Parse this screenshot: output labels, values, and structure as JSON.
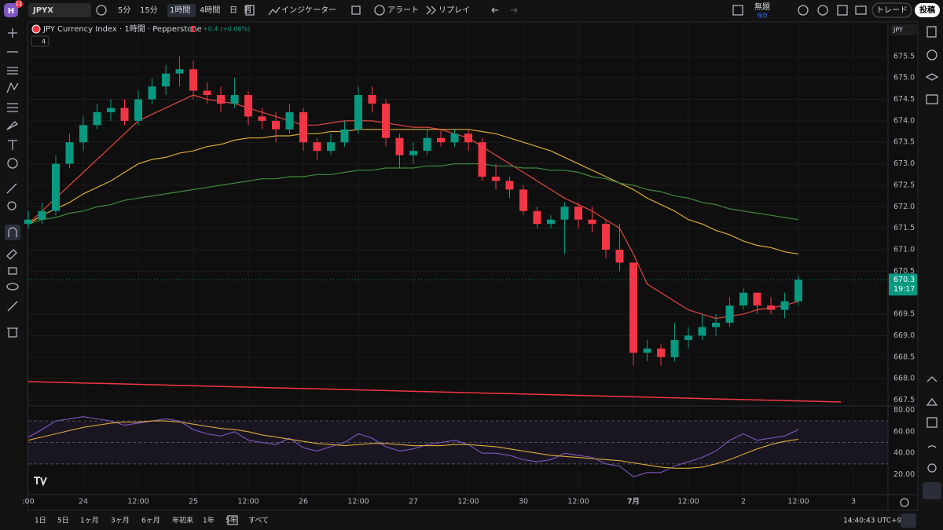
{
  "toolbar": {
    "avatar": "H",
    "badge": "11",
    "symbol": "JPYX",
    "intervals": [
      "5分",
      "15分",
      "1時間",
      "4時間",
      "日",
      "週"
    ],
    "indicators": "インジケーター",
    "alert": "アラート",
    "replay": "リプレイ",
    "layout_name": "無題",
    "layout_status": "保存",
    "trade": "トレード",
    "publish": "投稿"
  },
  "chart": {
    "type": "candlestick",
    "title": "JPY Currency Index · 1時間 · Pepperstone",
    "change": "+0.4 (+0.06%)",
    "indicator_count": "4",
    "currency": "JPY",
    "up_color": "#089981",
    "down_color": "#f23645",
    "categories": [
      ":00",
      null,
      null,
      null,
      "24",
      null,
      null,
      null,
      "12:00",
      null,
      null,
      null,
      "25",
      null,
      null,
      null,
      "12:00",
      null,
      null,
      null,
      "26",
      null,
      null,
      null,
      "12:00",
      null,
      null,
      null,
      "27",
      null,
      null,
      null,
      "12:00",
      null,
      null,
      null,
      "30",
      null,
      null,
      null,
      "12:00",
      null,
      null,
      null,
      "7月",
      null,
      null,
      null,
      "12:00",
      null,
      null,
      null,
      "2",
      null,
      null,
      null,
      "12:00",
      null,
      null,
      null,
      "3"
    ],
    "candles": [
      {
        "o": 671.6,
        "h": 671.9,
        "l": 671.5,
        "c": 671.7
      },
      {
        "o": 671.7,
        "h": 672.1,
        "l": 671.6,
        "c": 671.9
      },
      {
        "o": 671.9,
        "h": 673.2,
        "l": 671.8,
        "c": 673.0
      },
      {
        "o": 673.0,
        "h": 673.7,
        "l": 672.9,
        "c": 673.5
      },
      {
        "o": 673.5,
        "h": 674.1,
        "l": 673.3,
        "c": 673.9
      },
      {
        "o": 673.9,
        "h": 674.4,
        "l": 673.8,
        "c": 674.2
      },
      {
        "o": 674.2,
        "h": 674.5,
        "l": 674.0,
        "c": 674.3
      },
      {
        "o": 674.3,
        "h": 674.5,
        "l": 673.9,
        "c": 674.0
      },
      {
        "o": 674.0,
        "h": 674.7,
        "l": 673.9,
        "c": 674.5
      },
      {
        "o": 674.5,
        "h": 675.0,
        "l": 674.4,
        "c": 674.8
      },
      {
        "o": 674.8,
        "h": 675.3,
        "l": 674.6,
        "c": 675.1
      },
      {
        "o": 675.1,
        "h": 675.5,
        "l": 674.8,
        "c": 675.2
      },
      {
        "o": 675.2,
        "h": 675.4,
        "l": 674.5,
        "c": 674.7
      },
      {
        "o": 674.7,
        "h": 674.9,
        "l": 674.4,
        "c": 674.6
      },
      {
        "o": 674.6,
        "h": 674.8,
        "l": 674.2,
        "c": 674.4
      },
      {
        "o": 674.4,
        "h": 675.0,
        "l": 674.3,
        "c": 674.6
      },
      {
        "o": 674.6,
        "h": 674.7,
        "l": 673.9,
        "c": 674.1
      },
      {
        "o": 674.1,
        "h": 674.3,
        "l": 673.8,
        "c": 674.0
      },
      {
        "o": 674.0,
        "h": 674.2,
        "l": 673.5,
        "c": 673.8
      },
      {
        "o": 673.8,
        "h": 674.4,
        "l": 673.7,
        "c": 674.2
      },
      {
        "o": 674.2,
        "h": 674.3,
        "l": 673.3,
        "c": 673.5
      },
      {
        "o": 673.5,
        "h": 673.6,
        "l": 673.1,
        "c": 673.3
      },
      {
        "o": 673.3,
        "h": 673.7,
        "l": 673.2,
        "c": 673.5
      },
      {
        "o": 673.5,
        "h": 674.0,
        "l": 673.4,
        "c": 673.8
      },
      {
        "o": 673.8,
        "h": 674.8,
        "l": 673.7,
        "c": 674.6
      },
      {
        "o": 674.6,
        "h": 674.8,
        "l": 674.2,
        "c": 674.4
      },
      {
        "o": 674.4,
        "h": 674.5,
        "l": 673.4,
        "c": 673.6
      },
      {
        "o": 673.6,
        "h": 673.7,
        "l": 672.9,
        "c": 673.2
      },
      {
        "o": 673.2,
        "h": 673.5,
        "l": 673.0,
        "c": 673.3
      },
      {
        "o": 673.3,
        "h": 673.8,
        "l": 673.2,
        "c": 673.6
      },
      {
        "o": 673.6,
        "h": 673.8,
        "l": 673.4,
        "c": 673.5
      },
      {
        "o": 673.5,
        "h": 673.8,
        "l": 673.4,
        "c": 673.7
      },
      {
        "o": 673.7,
        "h": 673.8,
        "l": 673.3,
        "c": 673.5
      },
      {
        "o": 673.5,
        "h": 673.6,
        "l": 672.6,
        "c": 672.7
      },
      {
        "o": 672.7,
        "h": 673.0,
        "l": 672.4,
        "c": 672.6
      },
      {
        "o": 672.6,
        "h": 672.7,
        "l": 672.2,
        "c": 672.4
      },
      {
        "o": 672.4,
        "h": 672.5,
        "l": 671.8,
        "c": 671.9
      },
      {
        "o": 671.9,
        "h": 672.0,
        "l": 671.5,
        "c": 671.6
      },
      {
        "o": 671.6,
        "h": 671.8,
        "l": 671.5,
        "c": 671.7
      },
      {
        "o": 671.7,
        "h": 672.1,
        "l": 670.9,
        "c": 672.0
      },
      {
        "o": 672.0,
        "h": 672.1,
        "l": 671.5,
        "c": 671.7
      },
      {
        "o": 671.7,
        "h": 672.0,
        "l": 671.4,
        "c": 671.6
      },
      {
        "o": 671.6,
        "h": 671.7,
        "l": 670.8,
        "c": 671.0
      },
      {
        "o": 671.0,
        "h": 671.6,
        "l": 670.5,
        "c": 670.7
      },
      {
        "o": 670.7,
        "h": 670.7,
        "l": 668.3,
        "c": 668.6
      },
      {
        "o": 668.6,
        "h": 668.9,
        "l": 668.4,
        "c": 668.7
      },
      {
        "o": 668.7,
        "h": 668.8,
        "l": 668.3,
        "c": 668.5
      },
      {
        "o": 668.5,
        "h": 669.3,
        "l": 668.4,
        "c": 668.9
      },
      {
        "o": 668.9,
        "h": 669.2,
        "l": 668.7,
        "c": 669.0
      },
      {
        "o": 669.0,
        "h": 669.5,
        "l": 668.9,
        "c": 669.2
      },
      {
        "o": 669.2,
        "h": 669.5,
        "l": 669.0,
        "c": 669.3
      },
      {
        "o": 669.3,
        "h": 669.9,
        "l": 669.2,
        "c": 669.7
      },
      {
        "o": 669.7,
        "h": 670.1,
        "l": 669.6,
        "c": 670.0
      },
      {
        "o": 670.0,
        "h": 670.0,
        "l": 669.5,
        "c": 669.7
      },
      {
        "o": 669.7,
        "h": 669.9,
        "l": 669.5,
        "c": 669.6
      },
      {
        "o": 669.6,
        "h": 670.0,
        "l": 669.4,
        "c": 669.8
      },
      {
        "o": 669.8,
        "h": 670.4,
        "l": 669.7,
        "c": 670.3
      },
      null,
      null,
      null,
      null
    ],
    "moving_averages": [
      {
        "color": "#e0483e",
        "values": [
          671.6,
          671.9,
          672.2,
          672.5,
          672.8,
          673.1,
          673.4,
          673.7,
          674.0,
          674.15,
          674.3,
          674.45,
          674.6,
          674.5,
          674.45,
          674.4,
          674.3,
          674.2,
          674.1,
          674.0,
          673.9,
          673.9,
          673.95,
          674.0,
          674.0,
          674.0,
          673.95,
          673.9,
          673.85,
          673.85,
          673.8,
          673.7,
          673.6,
          673.4,
          673.2,
          673.0,
          672.8,
          672.6,
          672.4,
          672.2,
          672.05,
          671.9,
          671.7,
          671.5,
          670.9,
          670.2,
          670.0,
          669.8,
          669.6,
          669.5,
          669.4,
          669.45,
          669.5,
          669.6,
          669.65,
          669.7,
          669.8,
          null,
          null,
          null,
          null
        ]
      },
      {
        "color": "#d9a93a",
        "values": [
          671.6,
          671.8,
          671.95,
          672.1,
          672.3,
          672.45,
          672.6,
          672.8,
          673.0,
          673.1,
          673.15,
          673.25,
          673.3,
          673.4,
          673.45,
          673.55,
          673.6,
          673.6,
          673.65,
          673.65,
          673.7,
          673.7,
          673.75,
          673.75,
          673.8,
          673.8,
          673.8,
          673.8,
          673.8,
          673.8,
          673.8,
          673.8,
          673.8,
          673.75,
          673.7,
          673.6,
          673.5,
          673.4,
          673.3,
          673.15,
          673.0,
          672.85,
          672.7,
          672.55,
          672.4,
          672.2,
          672.05,
          671.9,
          671.7,
          671.6,
          671.45,
          671.35,
          671.2,
          671.1,
          671.05,
          670.95,
          670.9,
          null,
          null,
          null,
          null
        ]
      },
      {
        "color": "#3f8a3a",
        "values": [
          671.6,
          671.7,
          671.75,
          671.85,
          671.9,
          672.0,
          672.05,
          672.15,
          672.2,
          672.25,
          672.3,
          672.35,
          672.4,
          672.45,
          672.5,
          672.55,
          672.6,
          672.65,
          672.65,
          672.7,
          672.7,
          672.75,
          672.75,
          672.8,
          672.85,
          672.85,
          672.9,
          672.9,
          672.9,
          672.95,
          672.95,
          673.0,
          673.0,
          673.0,
          672.95,
          672.95,
          672.9,
          672.9,
          672.85,
          672.85,
          672.8,
          672.7,
          672.65,
          672.55,
          672.5,
          672.4,
          672.35,
          672.25,
          672.2,
          672.1,
          672.05,
          671.95,
          671.9,
          671.85,
          671.8,
          671.75,
          671.7,
          null,
          null,
          null,
          null
        ]
      }
    ],
    "ylim": [
      667.4,
      676.3
    ],
    "yticks": [
      675.5,
      {
        "value": 675,
        "label": "675.0"
      },
      674.5,
      {
        "value": 674,
        "label": "674.0"
      },
      673.5,
      {
        "value": 673,
        "label": "673.0"
      },
      672.5,
      {
        "value": 672,
        "label": "672.0"
      },
      671.5,
      {
        "value": 671,
        "label": "671.0"
      },
      670.5,
      669.5,
      {
        "value": 669,
        "label": "669.0"
      },
      668.5,
      {
        "value": 668,
        "label": "668.0"
      },
      667.5
    ],
    "last_price": 670.3,
    "countdown": "19:17"
  },
  "rsi": {
    "type": "line",
    "ylim": [
      5,
      84
    ],
    "yticks": [
      {
        "value": 80,
        "label": "80.00"
      },
      {
        "value": 60,
        "label": "60.00"
      },
      {
        "value": 40,
        "label": "40.00"
      },
      {
        "value": 20,
        "label": "20.00"
      }
    ],
    "bands": [
      70,
      50,
      30
    ],
    "series": [
      {
        "color": "#7e57c2",
        "values": [
          55,
          62,
          70,
          72,
          74,
          72,
          70,
          66,
          68,
          70,
          72,
          70,
          62,
          58,
          56,
          60,
          52,
          50,
          48,
          54,
          45,
          42,
          46,
          50,
          58,
          54,
          46,
          42,
          44,
          48,
          50,
          52,
          48,
          40,
          40,
          38,
          34,
          32,
          34,
          40,
          38,
          36,
          30,
          28,
          18,
          22,
          22,
          28,
          32,
          36,
          42,
          52,
          58,
          52,
          54,
          56,
          62,
          null,
          null,
          null,
          null
        ]
      },
      {
        "color": "#d9a93a",
        "values": [
          52,
          55,
          58,
          61,
          64,
          66,
          68,
          69,
          69,
          70,
          70,
          69,
          67,
          65,
          63,
          62,
          60,
          57,
          55,
          53,
          51,
          49,
          48,
          47,
          48,
          49,
          49,
          48,
          47,
          47,
          47,
          48,
          48,
          47,
          46,
          44,
          42,
          40,
          38,
          37,
          36,
          35,
          34,
          33,
          31,
          29,
          27,
          26,
          26,
          27,
          30,
          34,
          39,
          44,
          48,
          51,
          53,
          null,
          null,
          null,
          null
        ]
      }
    ]
  },
  "bottom_bar": {
    "ranges": [
      "1日",
      "5日",
      "1ヶ月",
      "3ヶ月",
      "6ヶ月",
      "年初来",
      "1年",
      "5年",
      "すべて"
    ],
    "clock": "14:40:43 UTC+9"
  }
}
